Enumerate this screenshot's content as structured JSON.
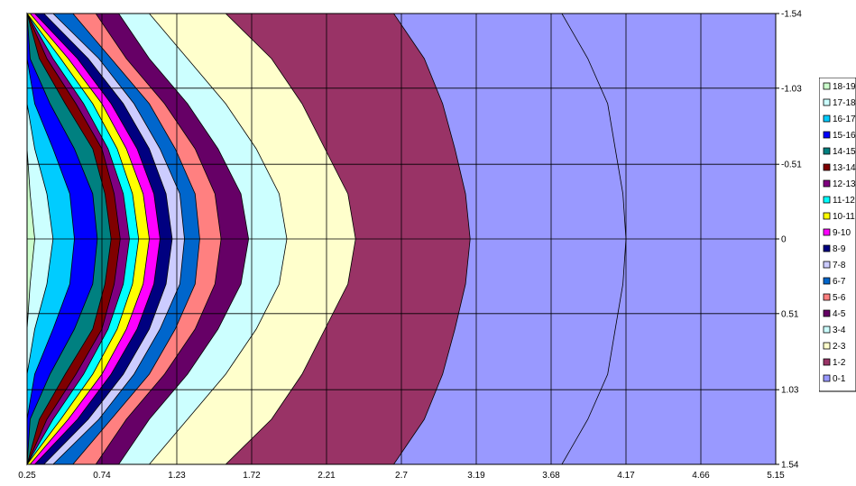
{
  "chart_data": {
    "type": "contour",
    "title": "",
    "xlabel": "",
    "ylabel": "",
    "x_ticks": [
      "0.25",
      "0.74",
      "1.23",
      "1.72",
      "2.21",
      "2.7",
      "3.19",
      "3.68",
      "4.17",
      "4.66",
      "5.15"
    ],
    "x_values": [
      0.25,
      0.74,
      1.23,
      1.72,
      2.21,
      2.7,
      3.19,
      3.68,
      4.17,
      4.66,
      5.15
    ],
    "y_ticks": [
      "-1.54",
      "-1.03",
      "-0.51",
      "0",
      "0.51",
      "1.03",
      "1.54"
    ],
    "y_values": [
      -1.54,
      -1.03,
      -0.51,
      0,
      0.51,
      1.03,
      1.54
    ],
    "xlim": [
      0.25,
      5.15
    ],
    "ylim": [
      -1.54,
      1.54
    ],
    "y_axis_position": "right",
    "y_axis_reversed": true,
    "grid": true,
    "legend_position": "right",
    "bands": [
      {
        "label": "0-1",
        "color": "#9999FF",
        "x_edge": [
          3.75,
          3.92,
          4.05,
          4.1,
          4.15,
          4.17,
          4.15,
          4.1,
          4.05,
          3.92,
          3.75
        ]
      },
      {
        "label": "1-2",
        "color": "#993366",
        "x_edge": [
          2.65,
          2.85,
          2.97,
          3.05,
          3.12,
          3.15,
          3.12,
          3.05,
          2.97,
          2.85,
          2.65
        ]
      },
      {
        "label": "2-3",
        "color": "#FFFFCC",
        "x_edge": [
          1.55,
          1.85,
          2.05,
          2.2,
          2.35,
          2.4,
          2.35,
          2.2,
          2.05,
          1.85,
          1.55
        ]
      },
      {
        "label": "3-4",
        "color": "#CCFFFF",
        "x_edge": [
          1.05,
          1.3,
          1.55,
          1.75,
          1.9,
          1.95,
          1.9,
          1.75,
          1.55,
          1.3,
          1.05
        ]
      },
      {
        "label": "4-5",
        "color": "#660066",
        "x_edge": [
          0.85,
          1.05,
          1.3,
          1.5,
          1.65,
          1.7,
          1.65,
          1.5,
          1.3,
          1.05,
          0.85
        ]
      },
      {
        "label": "5-6",
        "color": "#FF8080",
        "x_edge": [
          0.7,
          0.9,
          1.15,
          1.35,
          1.48,
          1.52,
          1.48,
          1.35,
          1.15,
          0.9,
          0.7
        ]
      },
      {
        "label": "6-7",
        "color": "#0066CC",
        "x_edge": [
          0.55,
          0.8,
          1.05,
          1.22,
          1.35,
          1.38,
          1.35,
          1.22,
          1.05,
          0.8,
          0.55
        ]
      },
      {
        "label": "7-8",
        "color": "#CCCCFF",
        "x_edge": [
          0.42,
          0.72,
          0.95,
          1.12,
          1.25,
          1.28,
          1.25,
          1.12,
          0.95,
          0.72,
          0.42
        ]
      },
      {
        "label": "8-9",
        "color": "#000080",
        "x_edge": [
          0.36,
          0.65,
          0.88,
          1.05,
          1.16,
          1.2,
          1.16,
          1.05,
          0.88,
          0.65,
          0.36
        ]
      },
      {
        "label": "9-10",
        "color": "#FF00FF",
        "x_edge": [
          0.3,
          0.58,
          0.8,
          0.97,
          1.08,
          1.12,
          1.08,
          0.97,
          0.8,
          0.58,
          0.3
        ]
      },
      {
        "label": "10-11",
        "color": "#FFFF00",
        "x_edge": [
          0.27,
          0.52,
          0.74,
          0.9,
          1.01,
          1.05,
          1.01,
          0.9,
          0.74,
          0.52,
          0.27
        ]
      },
      {
        "label": "11-12",
        "color": "#00FFFF",
        "x_edge": [
          0.25,
          0.47,
          0.68,
          0.84,
          0.94,
          0.98,
          0.94,
          0.84,
          0.68,
          0.47,
          0.25
        ]
      },
      {
        "label": "12-13",
        "color": "#800080",
        "x_edge": [
          0.25,
          0.42,
          0.62,
          0.78,
          0.88,
          0.92,
          0.88,
          0.78,
          0.62,
          0.42,
          0.25
        ]
      },
      {
        "label": "13-14",
        "color": "#800000",
        "x_edge": [
          0.25,
          0.38,
          0.57,
          0.74,
          0.82,
          0.86,
          0.82,
          0.74,
          0.57,
          0.38,
          0.25
        ]
      },
      {
        "label": "14-15",
        "color": "#008080",
        "x_edge": [
          0.25,
          0.33,
          0.5,
          0.68,
          0.76,
          0.8,
          0.76,
          0.68,
          0.5,
          0.33,
          0.25
        ]
      },
      {
        "label": "15-16",
        "color": "#0000FF",
        "x_edge": [
          0.25,
          0.27,
          0.4,
          0.56,
          0.68,
          0.71,
          0.68,
          0.56,
          0.4,
          0.27,
          0.25
        ]
      },
      {
        "label": "16-17",
        "color": "#00CCFF",
        "x_edge": [
          0.25,
          0.25,
          0.3,
          0.42,
          0.53,
          0.56,
          0.53,
          0.42,
          0.3,
          0.25,
          0.25
        ]
      },
      {
        "label": "17-18",
        "color": "#CCFFFF",
        "x_edge": [
          0.25,
          0.25,
          0.25,
          0.3,
          0.38,
          0.42,
          0.38,
          0.3,
          0.25,
          0.25,
          0.25
        ]
      },
      {
        "label": "18-19",
        "color": "#CCFFCC",
        "x_edge": [
          0.25,
          0.25,
          0.25,
          0.25,
          0.27,
          0.3,
          0.27,
          0.25,
          0.25,
          0.25,
          0.25
        ]
      }
    ],
    "band_y_samples": [
      -1.54,
      -1.232,
      -0.924,
      -0.616,
      -0.308,
      0,
      0.308,
      0.616,
      0.924,
      1.232,
      1.54
    ],
    "legend_order": [
      "18-19",
      "17-18",
      "16-17",
      "15-16",
      "14-15",
      "13-14",
      "12-13",
      "11-12",
      "10-11",
      "9-10",
      "8-9",
      "7-8",
      "6-7",
      "5-6",
      "4-5",
      "3-4",
      "2-3",
      "1-2",
      "0-1"
    ]
  }
}
